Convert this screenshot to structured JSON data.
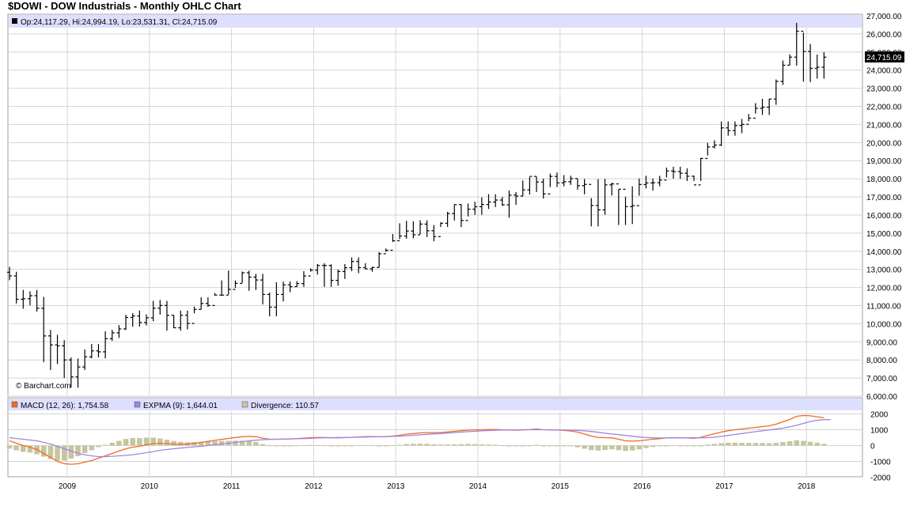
{
  "header": {
    "title": "$DOWI - DOW Industrials - Monthly OHLC Chart"
  },
  "price_panel": {
    "legend_text": "Op:24,117.29, Hi:24,994.19, Lo:23,531.31, Cl:24,715.09",
    "last_price_label": "24,715.09",
    "copyright": "© Barchart.com"
  },
  "macd_panel": {
    "legend_macd": "MACD (12, 26): 1,754.58",
    "legend_expma": "EXPMA (9): 1,644.01",
    "legend_div": "Divergence: 110.57"
  },
  "colors": {
    "panel_header_bg": "#dedeff",
    "grid": "#d4d4d4",
    "macd_line": "#f06a1f",
    "expma_line": "#9f84e6",
    "divergence_bar": "#c7c59f",
    "last_price_bg": "#000000"
  },
  "chart_data": [
    {
      "type": "ohlc",
      "title": "$DOWI - DOW Industrials - Monthly OHLC Chart",
      "x_tick_labels": [
        "2009",
        "2010",
        "2011",
        "2012",
        "2013",
        "2014",
        "2015",
        "2016",
        "2017",
        "2018"
      ],
      "y_tick_labels": [
        "6,000.00",
        "7,000.00",
        "8,000.00",
        "9,000.00",
        "10,000.00",
        "11,000.00",
        "12,000.00",
        "13,000.00",
        "14,000.00",
        "15,000.00",
        "16,000.00",
        "17,000.00",
        "18,000.00",
        "19,000.00",
        "20,000.00",
        "21,000.00",
        "22,000.00",
        "23,000.00",
        "24,000.00",
        "25,000.00",
        "26,000.00",
        "27,000.00"
      ],
      "x_start": "2008-05",
      "ylim": [
        6000,
        27000
      ],
      "grid": true,
      "closes": [
        12638,
        11350,
        11378,
        11544,
        10851,
        9325,
        8829,
        8776,
        8000,
        7062,
        7609,
        8168,
        8500,
        8447,
        9172,
        9496,
        9713,
        10345,
        10428,
        10067,
        10325,
        10857,
        11009,
        10466,
        9774,
        10466,
        10015,
        10788,
        11118,
        11006,
        11578,
        11578,
        11892,
        12226,
        12810,
        12570,
        12414,
        11614,
        10913,
        11614,
        12143,
        12046,
        12217,
        12633,
        12952,
        13212,
        13214,
        12393,
        12880,
        13090,
        13437,
        13096,
        13026,
        13104,
        13861,
        14054,
        14578,
        14840,
        15116,
        14910,
        15500,
        15130,
        14810,
        15546,
        16086,
        16577,
        15699,
        16322,
        16458,
        16581,
        16718,
        16827,
        16563,
        17099,
        17043,
        17391,
        18133,
        17823,
        17165,
        18133,
        17776,
        17840,
        18011,
        17620,
        17690,
        16528,
        16285,
        17664,
        17720,
        17425,
        16466,
        16517,
        17685,
        17773,
        17787,
        17930,
        18432,
        18400,
        18308,
        18143,
        17664,
        19124,
        19762,
        19864,
        20812,
        20663,
        20941,
        21009,
        21350,
        21891,
        21948,
        22405,
        23377,
        24272,
        24719,
        26149,
        25029,
        24103,
        24163,
        24715
      ],
      "highs": [
        13136,
        12868,
        11867,
        11790,
        11867,
        11483,
        9654,
        9387,
        9088,
        8132,
        8076,
        8575,
        8878,
        8877,
        9580,
        9659,
        9918,
        10496,
        10580,
        10730,
        10513,
        11258,
        11309,
        11258,
        10474,
        10720,
        10720,
        10948,
        11451,
        11451,
        11700,
        12391,
        12930,
        12391,
        12876,
        12929,
        12753,
        12753,
        11716,
        12284,
        12328,
        12328,
        12347,
        12900,
        13055,
        13298,
        13338,
        13279,
        12987,
        13290,
        13662,
        13662,
        13338,
        13150,
        13950,
        14150,
        14950,
        15542,
        15680,
        15658,
        15710,
        15709,
        15450,
        15600,
        16175,
        16588,
        16595,
        16632,
        16735,
        16970,
        17151,
        17151,
        16999,
        17350,
        17263,
        17906,
        18103,
        18123,
        18006,
        18288,
        18351,
        18207,
        18168,
        17999,
        17990,
        16933,
        17977,
        17999,
        17789,
        17423,
        17009,
        17580,
        18020,
        18168,
        18016,
        18167,
        18622,
        18668,
        18668,
        18572,
        18172,
        19152,
        19987,
        20125,
        21169,
        21169,
        21169,
        21305,
        21580,
        22179,
        22419,
        22419,
        23485,
        24534,
        24876,
        26616,
        26072,
        25449,
        24858,
        24994
      ],
      "lows": [
        12403,
        11117,
        10826,
        11016,
        10665,
        7882,
        7449,
        7773,
        7000,
        6470,
        6469,
        7445,
        8087,
        8146,
        8087,
        9049,
        9210,
        9654,
        9835,
        9835,
        9908,
        10135,
        10498,
        9614,
        9757,
        9614,
        9686,
        10576,
        10788,
        10929,
        11555,
        11555,
        11613,
        11980,
        12258,
        11815,
        11865,
        11065,
        10404,
        10404,
        11231,
        11740,
        12035,
        12035,
        12877,
        12710,
        12035,
        12035,
        12101,
        12471,
        12895,
        12789,
        13013,
        12871,
        13104,
        13969,
        14513,
        14671,
        14690,
        14718,
        14940,
        14781,
        14551,
        15341,
        15340,
        15699,
        15340,
        15917,
        16015,
        16015,
        16333,
        16441,
        16506,
        15856,
        16561,
        17037,
        17130,
        17274,
        16915,
        17540,
        17547,
        17585,
        17662,
        17397,
        17150,
        15370,
        15370,
        16015,
        17080,
        15450,
        15450,
        15503,
        17068,
        17472,
        17350,
        17588,
        18079,
        18014,
        17999,
        17883,
        17883,
        17883,
        19287,
        19677,
        19812,
        20379,
        20379,
        20520,
        21179,
        21600,
        21527,
        21527,
        22086,
        23184,
        24272,
        24250,
        23360,
        23344,
        23531,
        23531
      ]
    },
    {
      "type": "line",
      "title": "MACD (12, 26)",
      "ylim": [
        -2000,
        2000
      ],
      "y_tick_labels": [
        "2000",
        "1000",
        "0",
        "-1000",
        "-2000"
      ],
      "x_start": "2008-05",
      "series": [
        {
          "name": "MACD (12, 26)",
          "values": [
            300,
            150,
            0,
            -100,
            -250,
            -500,
            -750,
            -1000,
            -1150,
            -1180,
            -1150,
            -1050,
            -950,
            -800,
            -650,
            -500,
            -350,
            -200,
            -100,
            -50,
            50,
            120,
            150,
            120,
            90,
            80,
            90,
            140,
            200,
            270,
            330,
            390,
            450,
            510,
            560,
            580,
            560,
            470,
            400,
            400,
            410,
            420,
            440,
            470,
            500,
            510,
            510,
            490,
            490,
            500,
            520,
            550,
            570,
            570,
            560,
            560,
            600,
            650,
            720,
            760,
            800,
            820,
            820,
            820,
            860,
            900,
            940,
            980,
            990,
            1000,
            1010,
            1020,
            1000,
            980,
            970,
            990,
            1010,
            1050,
            1000,
            990,
            980,
            960,
            920,
            850,
            730,
            600,
            520,
            500,
            490,
            400,
            300,
            280,
            300,
            350,
            400,
            430,
            480,
            500,
            490,
            480,
            460,
            520,
            640,
            750,
            850,
            940,
            1000,
            1050,
            1100,
            1150,
            1200,
            1250,
            1350,
            1500,
            1650,
            1850,
            1900,
            1880,
            1820,
            1754.58
          ]
        },
        {
          "name": "EXPMA (9)",
          "values": [
            500,
            450,
            400,
            350,
            300,
            200,
            100,
            -50,
            -200,
            -350,
            -480,
            -580,
            -650,
            -700,
            -700,
            -680,
            -650,
            -620,
            -580,
            -520,
            -450,
            -380,
            -300,
            -250,
            -200,
            -160,
            -120,
            -80,
            -40,
            0,
            50,
            100,
            150,
            200,
            250,
            300,
            340,
            370,
            390,
            400,
            410,
            420,
            430,
            440,
            460,
            480,
            490,
            500,
            510,
            510,
            520,
            530,
            540,
            550,
            560,
            570,
            580,
            600,
            620,
            650,
            680,
            710,
            740,
            760,
            790,
            820,
            850,
            880,
            900,
            930,
            950,
            970,
            980,
            990,
            990,
            1000,
            1000,
            1000,
            1000,
            1000,
            990,
            980,
            970,
            960,
            930,
            890,
            840,
            780,
            730,
            690,
            640,
            590,
            540,
            510,
            490,
            480,
            480,
            480,
            490,
            490,
            490,
            490,
            500,
            530,
            580,
            640,
            700,
            760,
            820,
            880,
            930,
            990,
            1040,
            1100,
            1180,
            1280,
            1400,
            1520,
            1600,
            1640,
            1644.01
          ]
        }
      ],
      "divergence": [
        -200,
        -300,
        -400,
        -450,
        -550,
        -700,
        -850,
        -950,
        -950,
        -830,
        -670,
        -470,
        -300,
        -100,
        50,
        180,
        300,
        420,
        480,
        470,
        500,
        500,
        450,
        370,
        290,
        240,
        210,
        220,
        240,
        270,
        280,
        290,
        300,
        310,
        310,
        280,
        220,
        100,
        10,
        0,
        0,
        0,
        10,
        30,
        40,
        30,
        20,
        -10,
        -20,
        -10,
        0,
        20,
        30,
        20,
        0,
        -10,
        20,
        50,
        100,
        110,
        120,
        110,
        80,
        60,
        70,
        80,
        90,
        100,
        90,
        70,
        60,
        50,
        20,
        -10,
        -20,
        -10,
        10,
        50,
        0,
        -10,
        -10,
        -20,
        -50,
        -110,
        -200,
        -290,
        -320,
        -280,
        -240,
        -290,
        -340,
        -310,
        -240,
        -160,
        -90,
        -50,
        0,
        20,
        0,
        -10,
        -40,
        -10,
        60,
        110,
        150,
        180,
        180,
        170,
        170,
        160,
        160,
        150,
        170,
        220,
        270,
        330,
        300,
        240,
        180,
        110.57
      ]
    }
  ]
}
